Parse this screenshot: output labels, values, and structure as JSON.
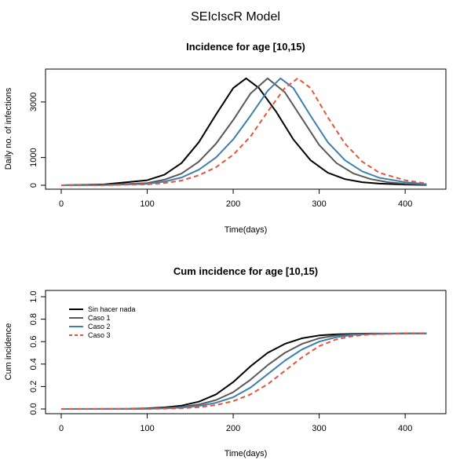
{
  "title": "SEIcIscR Model",
  "colors": {
    "series_0": "#000000",
    "series_1": "#595959",
    "series_2": "#3c7fb1",
    "series_3": "#e6553a"
  },
  "chart_data": [
    {
      "type": "line",
      "title": "Incidence for age [10,15)",
      "xlabel": "Time(days)",
      "ylabel": "Daily no. of infections",
      "xlim": [
        0,
        430
      ],
      "ylim": [
        0,
        4100
      ],
      "xticks": [
        "0",
        "100",
        "200",
        "300",
        "400"
      ],
      "yticks": [
        "0",
        "1000",
        "3000"
      ],
      "grid": false,
      "legend": "none",
      "series": [
        {
          "style": "solid",
          "color": "#000000",
          "x": [
            0,
            50,
            100,
            120,
            140,
            160,
            180,
            200,
            215,
            230,
            250,
            270,
            290,
            310,
            330,
            350,
            370,
            400,
            425
          ],
          "y": [
            0,
            30,
            180,
            380,
            800,
            1550,
            2550,
            3500,
            3850,
            3500,
            2650,
            1650,
            900,
            450,
            220,
            110,
            60,
            25,
            10
          ]
        },
        {
          "style": "solid",
          "color": "#595959",
          "x": [
            0,
            50,
            100,
            120,
            140,
            160,
            180,
            200,
            220,
            240,
            260,
            280,
            300,
            320,
            340,
            360,
            380,
            400,
            425
          ],
          "y": [
            0,
            10,
            80,
            200,
            420,
            850,
            1500,
            2350,
            3300,
            3850,
            3350,
            2400,
            1450,
            800,
            420,
            220,
            110,
            55,
            20
          ]
        },
        {
          "style": "solid",
          "color": "#3c7fb1",
          "x": [
            0,
            50,
            100,
            120,
            140,
            160,
            180,
            200,
            220,
            240,
            255,
            270,
            290,
            310,
            330,
            350,
            370,
            400,
            425
          ],
          "y": [
            0,
            5,
            50,
            130,
            280,
            560,
            1000,
            1650,
            2500,
            3400,
            3850,
            3500,
            2500,
            1550,
            900,
            500,
            270,
            110,
            40
          ]
        },
        {
          "style": "dashed",
          "color": "#e6553a",
          "x": [
            0,
            50,
            100,
            120,
            140,
            160,
            180,
            200,
            220,
            240,
            260,
            275,
            290,
            310,
            330,
            350,
            370,
            400,
            425
          ],
          "y": [
            0,
            5,
            30,
            80,
            170,
            360,
            650,
            1100,
            1750,
            2650,
            3500,
            3850,
            3500,
            2450,
            1500,
            850,
            450,
            180,
            60
          ]
        }
      ]
    },
    {
      "type": "line",
      "title": "Cum incidence for age [10,15)",
      "xlabel": "Time(days)",
      "ylabel": "Cum incidence",
      "xlim": [
        0,
        430
      ],
      "ylim": [
        0,
        1
      ],
      "xticks": [
        "0",
        "100",
        "200",
        "300",
        "400"
      ],
      "yticks": [
        "0.0",
        "0.2",
        "0.4",
        "0.6",
        "0.8",
        "1.0"
      ],
      "grid": false,
      "legend": "top-left",
      "series": [
        {
          "name": "Sin hacer nada",
          "style": "solid",
          "color": "#000000",
          "x": [
            0,
            80,
            100,
            120,
            140,
            160,
            180,
            200,
            220,
            240,
            260,
            280,
            300,
            320,
            340,
            360,
            400,
            425
          ],
          "y": [
            0,
            0.002,
            0.006,
            0.014,
            0.03,
            0.065,
            0.13,
            0.24,
            0.38,
            0.5,
            0.58,
            0.63,
            0.655,
            0.665,
            0.67,
            0.672,
            0.673,
            0.673
          ]
        },
        {
          "name": "Caso 1",
          "style": "solid",
          "color": "#595959",
          "x": [
            0,
            80,
            100,
            120,
            140,
            160,
            180,
            200,
            220,
            240,
            260,
            280,
            300,
            320,
            340,
            360,
            400,
            425
          ],
          "y": [
            0,
            0.001,
            0.003,
            0.008,
            0.018,
            0.04,
            0.08,
            0.15,
            0.26,
            0.39,
            0.5,
            0.58,
            0.63,
            0.655,
            0.665,
            0.67,
            0.673,
            0.673
          ]
        },
        {
          "name": "Caso 2",
          "style": "solid",
          "color": "#3c7fb1",
          "x": [
            0,
            80,
            100,
            120,
            140,
            160,
            180,
            200,
            220,
            240,
            260,
            280,
            300,
            320,
            340,
            360,
            400,
            425
          ],
          "y": [
            0,
            0.001,
            0.002,
            0.005,
            0.012,
            0.027,
            0.055,
            0.105,
            0.19,
            0.31,
            0.43,
            0.53,
            0.6,
            0.64,
            0.66,
            0.668,
            0.673,
            0.673
          ]
        },
        {
          "name": "Caso 3",
          "style": "dashed",
          "color": "#e6553a",
          "x": [
            0,
            80,
            100,
            120,
            140,
            160,
            180,
            200,
            220,
            240,
            260,
            280,
            300,
            320,
            340,
            360,
            400,
            425
          ],
          "y": [
            0,
            0.0,
            0.001,
            0.003,
            0.007,
            0.016,
            0.035,
            0.07,
            0.13,
            0.22,
            0.34,
            0.46,
            0.56,
            0.62,
            0.65,
            0.665,
            0.672,
            0.673
          ]
        }
      ]
    }
  ]
}
